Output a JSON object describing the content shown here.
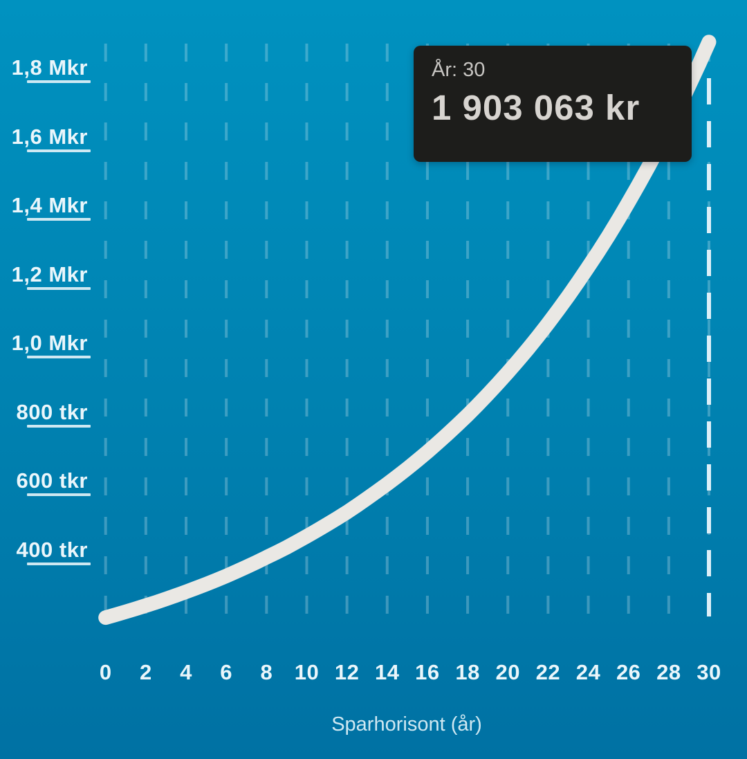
{
  "chart_data": {
    "type": "line",
    "title": "",
    "xlabel": "Sparhorisont (år)",
    "ylabel": "",
    "x_tick_labels": [
      "0",
      "2",
      "4",
      "6",
      "8",
      "10",
      "12",
      "14",
      "16",
      "18",
      "20",
      "22",
      "24",
      "26",
      "28",
      "30"
    ],
    "x_tick_values": [
      0,
      2,
      4,
      6,
      8,
      10,
      12,
      14,
      16,
      18,
      20,
      22,
      24,
      26,
      28,
      30
    ],
    "y_tick_labels": [
      "1,8 Mkr",
      "1,6 Mkr",
      "1,4 Mkr",
      "1,2 Mkr",
      "1,0 Mkr",
      "800 tkr",
      "600 tkr",
      "400 tkr"
    ],
    "y_tick_values": [
      1800000,
      1600000,
      1400000,
      1200000,
      1000000,
      800000,
      600000,
      400000
    ],
    "x_range": [
      0,
      30
    ],
    "grid": "vertical-dashed",
    "legend": "none",
    "highlight_x": 30,
    "x": [
      0,
      1,
      2,
      3,
      4,
      5,
      6,
      7,
      8,
      9,
      10,
      11,
      12,
      13,
      14,
      15,
      16,
      17,
      18,
      19,
      20,
      21,
      22,
      23,
      24,
      25,
      26,
      27,
      28,
      29,
      30
    ],
    "values": [
      232000,
      249000,
      267000,
      286000,
      307000,
      329000,
      353000,
      379000,
      407000,
      436000,
      468000,
      502000,
      538000,
      578000,
      620000,
      665000,
      713000,
      765000,
      820000,
      880000,
      944000,
      1012000,
      1086000,
      1165000,
      1250000,
      1340000,
      1438000,
      1542000,
      1654000,
      1775000,
      1903063
    ],
    "values_estimated_from_pixels": true
  },
  "tooltip": {
    "label": "År: 30",
    "value": "1 903 063 kr"
  },
  "colors": {
    "bg_top": "#0092c0",
    "bg_mid": "#0081b0",
    "bg_bottom": "#0071a3",
    "grid_line": "rgba(255,255,255,0.24)",
    "highlight_line": "#ddeff8",
    "curve": "#eae8e4",
    "axis_text": "#eaf6fb",
    "title_text": "#cfe8f2",
    "tooltip_bg": "#1d1d1b",
    "tooltip_label": "#c8c6c3",
    "tooltip_value": "#d7d4d0"
  }
}
